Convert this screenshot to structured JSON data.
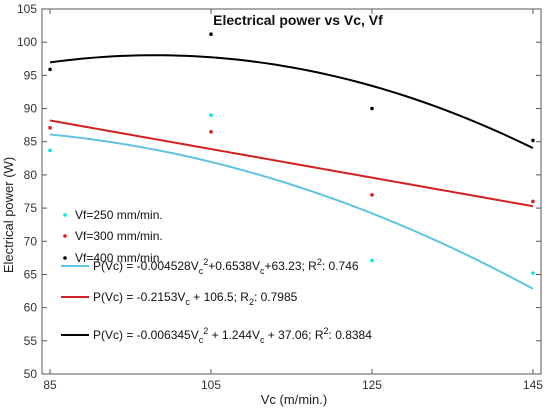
{
  "chart_data": {
    "type": "scatter",
    "title": "Electrical power vs Vc, Vf",
    "xlabel": "Vc (m/min.)",
    "ylabel": "Electrical power (W)",
    "xlim": [
      84,
      146
    ],
    "ylim": [
      50,
      105
    ],
    "xticks": [
      85,
      105,
      125,
      145
    ],
    "yticks": [
      50,
      55,
      60,
      65,
      70,
      75,
      80,
      85,
      90,
      95,
      100,
      105
    ],
    "grid": false,
    "legend_placement": "left",
    "series": [
      {
        "name": "Vf=250 mm/min.",
        "color": "#00e5ee",
        "points": [
          [
            85,
            83.7
          ],
          [
            105,
            89.0
          ],
          [
            125,
            67.1
          ],
          [
            145,
            65.2
          ]
        ]
      },
      {
        "name": "Vf=300 mm/min.",
        "color": "#e01b1b",
        "points": [
          [
            85,
            87.1
          ],
          [
            105,
            86.5
          ],
          [
            125,
            77.0
          ],
          [
            145,
            76.0
          ]
        ]
      },
      {
        "name": "Vf=400 mm/min.",
        "color": "#000000",
        "points": [
          [
            85,
            95.9
          ],
          [
            105,
            101.2
          ],
          [
            125,
            90.0
          ],
          [
            145,
            85.2
          ]
        ]
      }
    ],
    "fits": [
      {
        "color": "#5fc3e4",
        "a": -0.004528,
        "b": 0.6538,
        "c": 63.23,
        "label_parts": [
          "P(Vc) = -0.004528V",
          "c",
          "2",
          "+0.6538V",
          "c",
          "+63.23; R",
          "2",
          ": 0.746"
        ]
      },
      {
        "color": "#d42020",
        "a": 0,
        "b": -0.2153,
        "c": 106.5,
        "label_parts": [
          "P(Vc) = -0.2153V",
          "c",
          "",
          " + 106.5; R",
          "2",
          ": 0.7985",
          "",
          ""
        ]
      },
      {
        "color": "#000000",
        "a": -0.006345,
        "b": 1.244,
        "c": 37.06,
        "label_parts": [
          "P(Vc) = -0.006345V",
          "c",
          "2",
          " + 1.244V",
          "c",
          " + 37.06; R",
          "2",
          ": 0.8384"
        ]
      }
    ]
  }
}
